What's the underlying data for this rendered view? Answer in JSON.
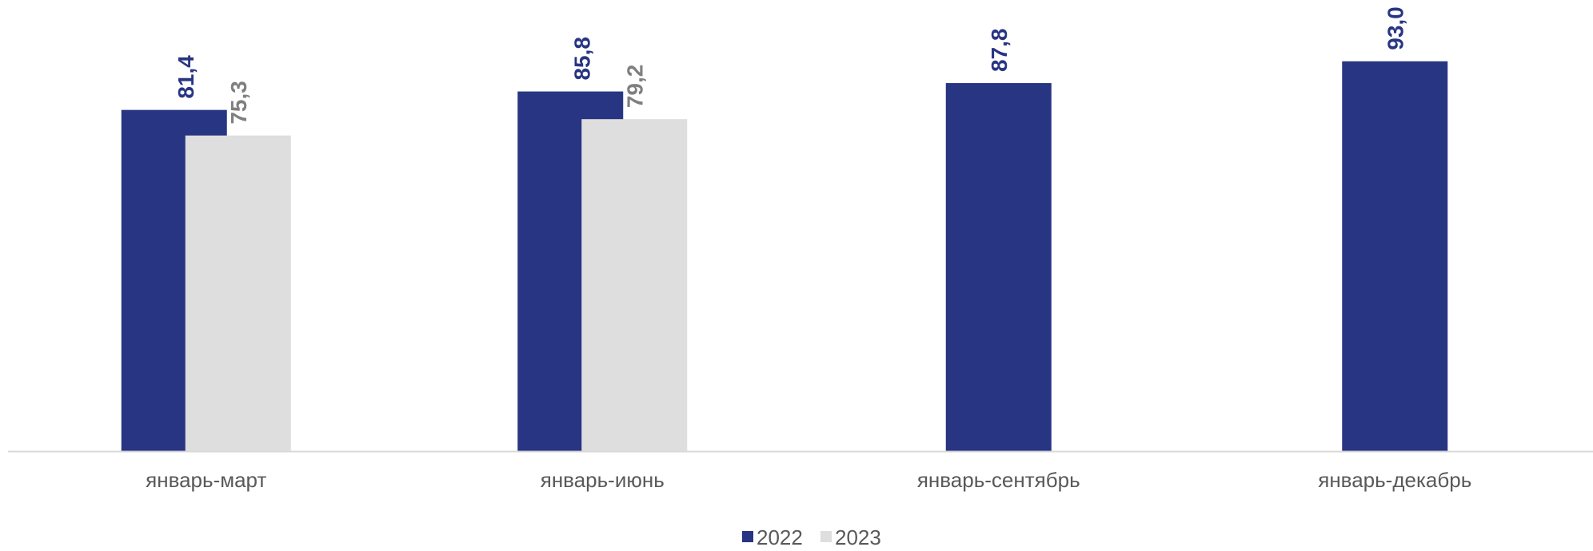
{
  "chart_data": {
    "type": "bar",
    "categories": [
      "январь-март",
      "январь-июнь",
      "январь-сентябрь",
      "январь-декабрь"
    ],
    "series": [
      {
        "name": "2022",
        "values": [
          81.4,
          85.8,
          87.8,
          93.0
        ],
        "labels": [
          "81,4",
          "85,8",
          "87,8",
          "93,0"
        ],
        "color": "#283583",
        "label_color": "#283583"
      },
      {
        "name": "2023",
        "values": [
          75.3,
          79.2,
          null,
          null
        ],
        "labels": [
          "75,3",
          "79,2",
          "",
          ""
        ],
        "color": "#dedede",
        "label_color": "#7f7f7f"
      }
    ],
    "ylim": [
      0,
      100
    ],
    "grid": false,
    "legend_position": "bottom-center",
    "axis_color": "#d9d9d9",
    "title": "",
    "xlabel": "",
    "ylabel": ""
  }
}
